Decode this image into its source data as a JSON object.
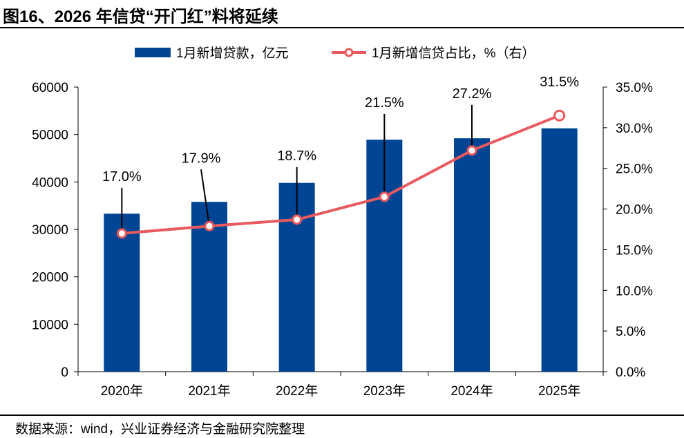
{
  "title": "图16、2026 年信贷“开门红”料将延续",
  "source": "数据来源：wind，兴业证券经济与金融研究院整理",
  "colors": {
    "bar": "#004494",
    "line": "#E95A5E"
  },
  "chart_data": {
    "type": "bar+line",
    "categories": [
      "2020年",
      "2021年",
      "2022年",
      "2023年",
      "2024年",
      "2025年"
    ],
    "series": [
      {
        "name": "1月新增贷款，亿元",
        "type": "bar",
        "axis": "left",
        "values": [
          33300,
          35800,
          39800,
          48900,
          49200,
          51300
        ]
      },
      {
        "name": "1月新增信贷占比，%（右）",
        "type": "line",
        "axis": "right",
        "values": [
          17.0,
          17.9,
          18.7,
          21.5,
          27.2,
          31.5
        ],
        "labels": [
          "17.0%",
          "17.9%",
          "18.7%",
          "21.5%",
          "27.2%",
          "31.5%"
        ]
      }
    ],
    "yleft": {
      "range": [
        0,
        60000
      ],
      "ticks": [
        "0",
        "10000",
        "20000",
        "30000",
        "40000",
        "50000",
        "60000"
      ]
    },
    "yright": {
      "range": [
        0,
        35
      ],
      "ticks": [
        "0.0%",
        "5.0%",
        "10.0%",
        "15.0%",
        "20.0%",
        "25.0%",
        "30.0%",
        "35.0%"
      ]
    },
    "legend": "top-center",
    "grid": false
  }
}
